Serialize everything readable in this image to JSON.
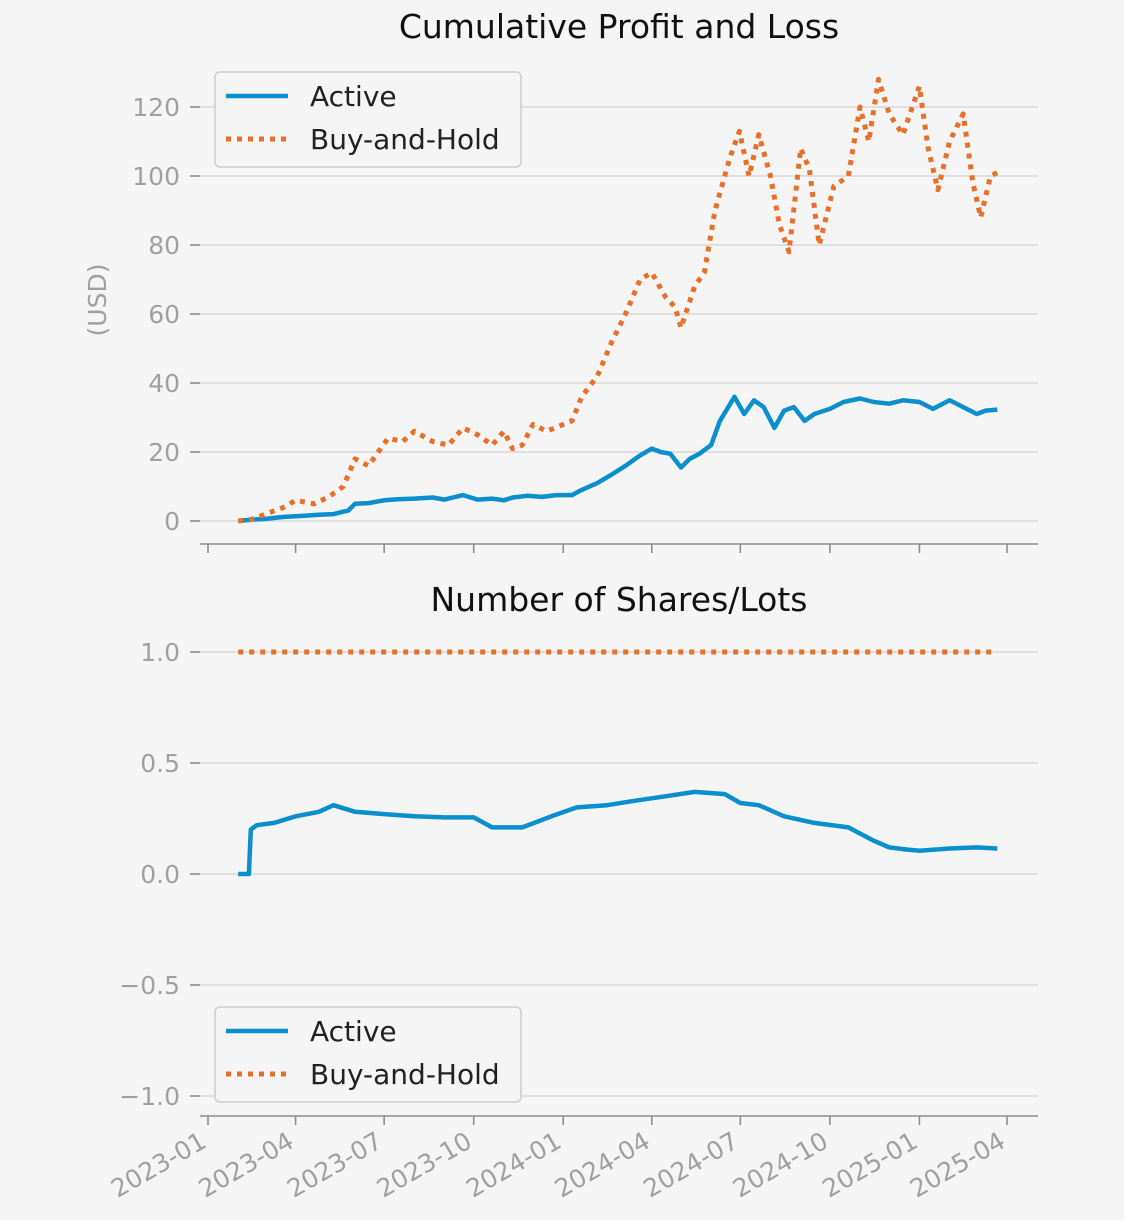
{
  "chart_data": [
    {
      "type": "line",
      "title": "Cumulative Profit and Loss",
      "ylabel": "(USD)",
      "xlabel": "",
      "ylim": [
        -6,
        132
      ],
      "yticks": [
        0,
        20,
        40,
        60,
        80,
        100,
        120
      ],
      "xlim": [
        "2022-12-10",
        "2025-04-25"
      ],
      "xticks": [
        "2023-01",
        "2023-04",
        "2023-07",
        "2023-10",
        "2024-01",
        "2024-04",
        "2024-07",
        "2024-10",
        "2025-01",
        "2025-04"
      ],
      "grid": "horizontal",
      "legend": "top-left",
      "series": [
        {
          "name": "Active",
          "style": "solid",
          "color": "#0b8fce",
          "points": [
            [
              "2023-02-01",
              0
            ],
            [
              "2023-02-15",
              0.4
            ],
            [
              "2023-03-01",
              0.6
            ],
            [
              "2023-03-20",
              1.2
            ],
            [
              "2023-04-10",
              1.5
            ],
            [
              "2023-04-25",
              1.8
            ],
            [
              "2023-05-10",
              2.0
            ],
            [
              "2023-05-25",
              3.0
            ],
            [
              "2023-06-01",
              5.0
            ],
            [
              "2023-06-15",
              5.2
            ],
            [
              "2023-07-01",
              6.0
            ],
            [
              "2023-07-15",
              6.3
            ],
            [
              "2023-08-01",
              6.5
            ],
            [
              "2023-08-20",
              6.8
            ],
            [
              "2023-09-01",
              6.2
            ],
            [
              "2023-09-20",
              7.5
            ],
            [
              "2023-10-05",
              6.2
            ],
            [
              "2023-10-20",
              6.5
            ],
            [
              "2023-11-01",
              6.0
            ],
            [
              "2023-11-10",
              6.8
            ],
            [
              "2023-11-25",
              7.3
            ],
            [
              "2023-12-10",
              7.0
            ],
            [
              "2023-12-25",
              7.5
            ],
            [
              "2024-01-10",
              7.5
            ],
            [
              "2024-01-20",
              9.0
            ],
            [
              "2024-02-05",
              11.0
            ],
            [
              "2024-02-20",
              13.5
            ],
            [
              "2024-03-05",
              16.0
            ],
            [
              "2024-03-20",
              19.0
            ],
            [
              "2024-04-01",
              21.0
            ],
            [
              "2024-04-10",
              20.0
            ],
            [
              "2024-04-20",
              19.5
            ],
            [
              "2024-05-01",
              15.5
            ],
            [
              "2024-05-10",
              18.0
            ],
            [
              "2024-05-20",
              19.5
            ],
            [
              "2024-06-01",
              22.0
            ],
            [
              "2024-06-10",
              29.0
            ],
            [
              "2024-06-25",
              36.0
            ],
            [
              "2024-07-05",
              31.0
            ],
            [
              "2024-07-15",
              35.0
            ],
            [
              "2024-07-25",
              33.0
            ],
            [
              "2024-08-05",
              27.0
            ],
            [
              "2024-08-15",
              32.0
            ],
            [
              "2024-08-25",
              33.0
            ],
            [
              "2024-09-05",
              29.0
            ],
            [
              "2024-09-15",
              31.0
            ],
            [
              "2024-10-01",
              32.5
            ],
            [
              "2024-10-15",
              34.5
            ],
            [
              "2024-11-01",
              35.5
            ],
            [
              "2024-11-15",
              34.5
            ],
            [
              "2024-12-01",
              34.0
            ],
            [
              "2024-12-15",
              35.0
            ],
            [
              "2025-01-01",
              34.5
            ],
            [
              "2025-01-15",
              32.5
            ],
            [
              "2025-02-01",
              35.0
            ],
            [
              "2025-02-15",
              33.0
            ],
            [
              "2025-03-01",
              31.0
            ],
            [
              "2025-03-10",
              32.0
            ],
            [
              "2025-03-22",
              32.3
            ]
          ]
        },
        {
          "name": "Buy-and-Hold",
          "style": "dotted",
          "color": "#e8702a",
          "points": [
            [
              "2023-02-01",
              0
            ],
            [
              "2023-02-15",
              0.5
            ],
            [
              "2023-03-01",
              2.0
            ],
            [
              "2023-03-20",
              4.0
            ],
            [
              "2023-04-01",
              6.0
            ],
            [
              "2023-04-20",
              5.0
            ],
            [
              "2023-05-05",
              7.0
            ],
            [
              "2023-05-20",
              10.0
            ],
            [
              "2023-06-01",
              18.0
            ],
            [
              "2023-06-15",
              16.0
            ],
            [
              "2023-06-25",
              20.0
            ],
            [
              "2023-07-05",
              24.0
            ],
            [
              "2023-07-20",
              23.0
            ],
            [
              "2023-08-01",
              26.0
            ],
            [
              "2023-08-20",
              23.0
            ],
            [
              "2023-09-05",
              22.0
            ],
            [
              "2023-09-20",
              27.0
            ],
            [
              "2023-10-05",
              25.0
            ],
            [
              "2023-10-20",
              22.0
            ],
            [
              "2023-11-01",
              26.0
            ],
            [
              "2023-11-10",
              21.0
            ],
            [
              "2023-11-20",
              22.0
            ],
            [
              "2023-12-01",
              28.0
            ],
            [
              "2023-12-15",
              26.0
            ],
            [
              "2024-01-01",
              28.0
            ],
            [
              "2024-01-10",
              29.0
            ],
            [
              "2024-01-20",
              36.0
            ],
            [
              "2024-02-05",
              42.0
            ],
            [
              "2024-02-20",
              52.0
            ],
            [
              "2024-03-05",
              60.0
            ],
            [
              "2024-03-20",
              70.0
            ],
            [
              "2024-04-01",
              72.0
            ],
            [
              "2024-04-15",
              65.0
            ],
            [
              "2024-04-25",
              62.0
            ],
            [
              "2024-05-01",
              56.0
            ],
            [
              "2024-05-15",
              68.0
            ],
            [
              "2024-05-25",
              72.0
            ],
            [
              "2024-06-05",
              90.0
            ],
            [
              "2024-06-20",
              105.0
            ],
            [
              "2024-06-30",
              113.0
            ],
            [
              "2024-07-10",
              100.0
            ],
            [
              "2024-07-20",
              112.0
            ],
            [
              "2024-08-01",
              100.0
            ],
            [
              "2024-08-10",
              86.0
            ],
            [
              "2024-08-20",
              78.0
            ],
            [
              "2024-09-01",
              108.0
            ],
            [
              "2024-09-10",
              102.0
            ],
            [
              "2024-09-20",
              80.0
            ],
            [
              "2024-10-05",
              97.0
            ],
            [
              "2024-10-20",
              100.0
            ],
            [
              "2024-11-01",
              120.0
            ],
            [
              "2024-11-10",
              110.0
            ],
            [
              "2024-11-20",
              128.0
            ],
            [
              "2024-12-01",
              118.0
            ],
            [
              "2024-12-15",
              112.0
            ],
            [
              "2025-01-01",
              126.0
            ],
            [
              "2025-01-10",
              108.0
            ],
            [
              "2025-01-20",
              96.0
            ],
            [
              "2025-02-01",
              110.0
            ],
            [
              "2025-02-15",
              118.0
            ],
            [
              "2025-02-25",
              98.0
            ],
            [
              "2025-03-05",
              88.0
            ],
            [
              "2025-03-15",
              100.0
            ],
            [
              "2025-03-22",
              101.0
            ]
          ]
        }
      ]
    },
    {
      "type": "line",
      "title": "Number of Shares/Lots",
      "ylabel": "",
      "xlabel": "",
      "ylim": [
        -1.1,
        1.1
      ],
      "yticks": [
        -1.0,
        -0.5,
        0.0,
        0.5,
        1.0
      ],
      "ytick_labels": [
        "−1.0",
        "−0.5",
        "0.0",
        "0.5",
        "1.0"
      ],
      "xlim": [
        "2022-12-10",
        "2025-04-25"
      ],
      "xticks": [
        "2023-01",
        "2023-04",
        "2023-07",
        "2023-10",
        "2024-01",
        "2024-04",
        "2024-07",
        "2024-10",
        "2025-01",
        "2025-04"
      ],
      "grid": "horizontal",
      "legend": "bottom-left",
      "series": [
        {
          "name": "Active",
          "style": "solid",
          "color": "#0b8fce",
          "points": [
            [
              "2023-02-01",
              0
            ],
            [
              "2023-02-12",
              0
            ],
            [
              "2023-02-14",
              0.2
            ],
            [
              "2023-02-20",
              0.22
            ],
            [
              "2023-03-10",
              0.23
            ],
            [
              "2023-04-01",
              0.26
            ],
            [
              "2023-04-25",
              0.28
            ],
            [
              "2023-05-10",
              0.31
            ],
            [
              "2023-06-01",
              0.28
            ],
            [
              "2023-07-01",
              0.27
            ],
            [
              "2023-08-01",
              0.26
            ],
            [
              "2023-09-01",
              0.255
            ],
            [
              "2023-10-01",
              0.255
            ],
            [
              "2023-10-20",
              0.21
            ],
            [
              "2023-11-20",
              0.21
            ],
            [
              "2023-12-20",
              0.26
            ],
            [
              "2024-01-15",
              0.3
            ],
            [
              "2024-02-15",
              0.31
            ],
            [
              "2024-03-15",
              0.33
            ],
            [
              "2024-04-15",
              0.35
            ],
            [
              "2024-05-15",
              0.37
            ],
            [
              "2024-06-15",
              0.36
            ],
            [
              "2024-07-01",
              0.32
            ],
            [
              "2024-07-20",
              0.31
            ],
            [
              "2024-08-15",
              0.26
            ],
            [
              "2024-09-15",
              0.23
            ],
            [
              "2024-10-20",
              0.21
            ],
            [
              "2024-11-15",
              0.15
            ],
            [
              "2024-12-01",
              0.12
            ],
            [
              "2024-12-20",
              0.11
            ],
            [
              "2025-01-01",
              0.105
            ],
            [
              "2025-02-01",
              0.115
            ],
            [
              "2025-03-01",
              0.12
            ],
            [
              "2025-03-22",
              0.115
            ]
          ]
        },
        {
          "name": "Buy-and-Hold",
          "style": "dotted",
          "color": "#e8702a",
          "points": [
            [
              "2023-02-01",
              1.0
            ],
            [
              "2025-03-22",
              1.0
            ]
          ]
        }
      ]
    }
  ]
}
